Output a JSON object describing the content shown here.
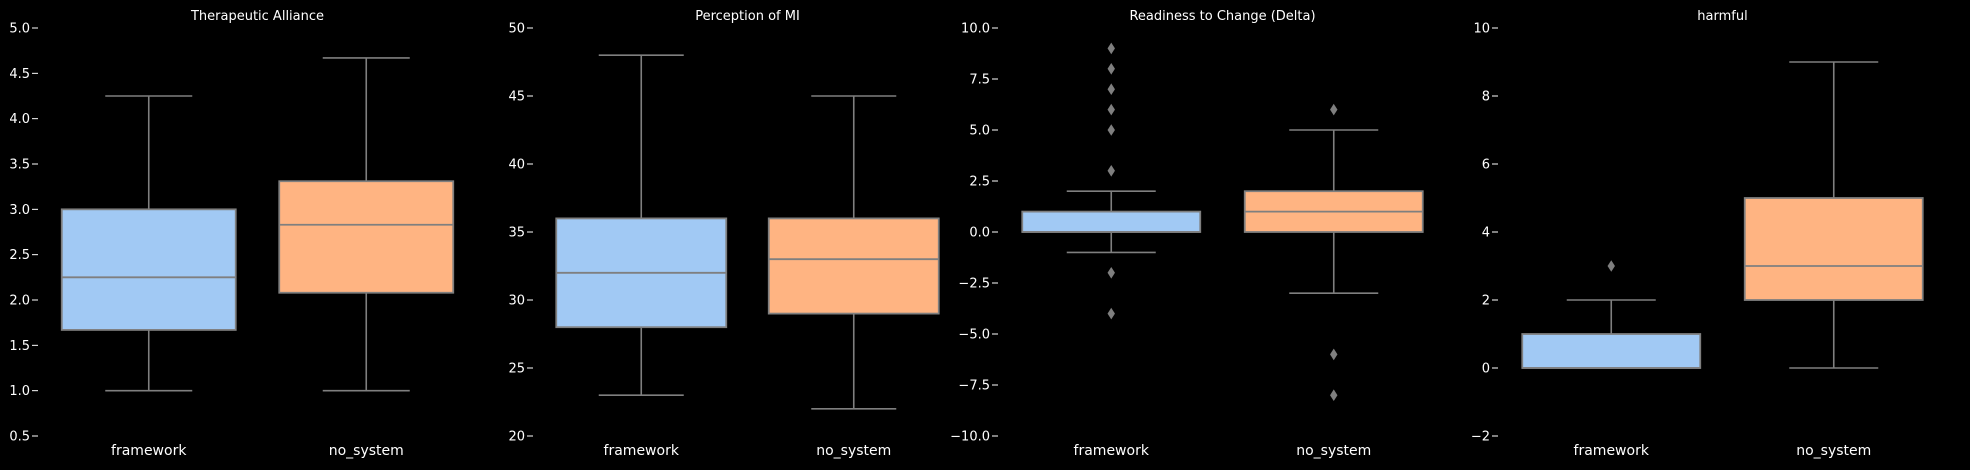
{
  "figure": {
    "background": "#000000",
    "text_color": "#ffffff",
    "line_color": "#7f7f7f"
  },
  "chart_data": [
    {
      "type": "box",
      "title": "Therapeutic Alliance",
      "categories": [
        "framework",
        "no_system"
      ],
      "colors": [
        "#a1c9f4",
        "#ffb482"
      ],
      "ylim": [
        0.5,
        5.0
      ],
      "yticks": [
        0.5,
        1.0,
        1.5,
        2.0,
        2.5,
        3.0,
        3.5,
        4.0,
        4.5,
        5.0
      ],
      "ytick_labels": [
        "0.5",
        "1.0",
        "1.5",
        "2.0",
        "2.5",
        "3.0",
        "3.5",
        "4.0",
        "4.5",
        "5.0"
      ],
      "boxes": [
        {
          "name": "framework",
          "whisker_low": 1.0,
          "q1": 1.67,
          "median": 2.25,
          "q3": 3.0,
          "whisker_high": 4.25,
          "outliers": []
        },
        {
          "name": "no_system",
          "whisker_low": 1.0,
          "q1": 2.08,
          "median": 2.83,
          "q3": 3.31,
          "whisker_high": 4.67,
          "outliers": []
        }
      ]
    },
    {
      "type": "box",
      "title": "Perception of MI",
      "categories": [
        "framework",
        "no_system"
      ],
      "colors": [
        "#a1c9f4",
        "#ffb482"
      ],
      "ylim": [
        20,
        50
      ],
      "yticks": [
        20,
        25,
        30,
        35,
        40,
        45,
        50
      ],
      "ytick_labels": [
        "20",
        "25",
        "30",
        "35",
        "40",
        "45",
        "50"
      ],
      "boxes": [
        {
          "name": "framework",
          "whisker_low": 23,
          "q1": 28,
          "median": 32,
          "q3": 36,
          "whisker_high": 48,
          "outliers": []
        },
        {
          "name": "no_system",
          "whisker_low": 22,
          "q1": 29,
          "median": 33,
          "q3": 36,
          "whisker_high": 45,
          "outliers": []
        }
      ]
    },
    {
      "type": "box",
      "title": "Readiness to Change (Delta)",
      "categories": [
        "framework",
        "no_system"
      ],
      "colors": [
        "#a1c9f4",
        "#ffb482"
      ],
      "ylim": [
        -10,
        10
      ],
      "yticks": [
        -10.0,
        -7.5,
        -5.0,
        -2.5,
        0.0,
        2.5,
        5.0,
        7.5,
        10.0
      ],
      "ytick_labels": [
        "−10.0",
        "−7.5",
        "−5.0",
        "−2.5",
        "0.0",
        "2.5",
        "5.0",
        "7.5",
        "10.0"
      ],
      "boxes": [
        {
          "name": "framework",
          "whisker_low": -1,
          "q1": 0,
          "median": 0,
          "q3": 1,
          "whisker_high": 2,
          "outliers": [
            9,
            8,
            7,
            6,
            5,
            3,
            -2,
            -4
          ]
        },
        {
          "name": "no_system",
          "whisker_low": -3,
          "q1": 0,
          "median": 1,
          "q3": 2,
          "whisker_high": 5,
          "outliers": [
            6,
            -6,
            -8
          ]
        }
      ]
    },
    {
      "type": "box",
      "title": "harmful",
      "categories": [
        "framework",
        "no_system"
      ],
      "colors": [
        "#a1c9f4",
        "#ffb482"
      ],
      "ylim": [
        -2,
        10
      ],
      "yticks": [
        -2,
        0,
        2,
        4,
        6,
        8,
        10
      ],
      "ytick_labels": [
        "−2",
        "0",
        "2",
        "4",
        "6",
        "8",
        "10"
      ],
      "boxes": [
        {
          "name": "framework",
          "whisker_low": 0,
          "q1": 0,
          "median": 0,
          "q3": 1,
          "whisker_high": 2,
          "outliers": [
            3
          ]
        },
        {
          "name": "no_system",
          "whisker_low": 0,
          "q1": 2,
          "median": 3,
          "q3": 5,
          "whisker_high": 9,
          "outliers": []
        }
      ]
    }
  ]
}
